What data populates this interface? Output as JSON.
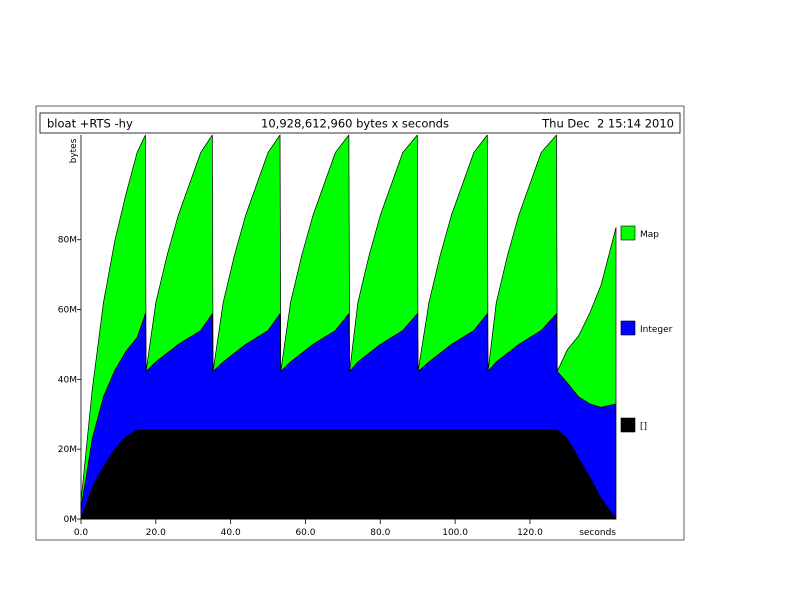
{
  "header": {
    "program": "bloat +RTS -hy",
    "total": "10,928,612,960 bytes x seconds",
    "date": "Thu Dec  2 15:14 2010"
  },
  "chart_data": {
    "type": "area",
    "stacked": true,
    "title": "bloat +RTS -hy",
    "xlabel": "seconds",
    "ylabel": "bytes",
    "xlim": [
      0,
      143
    ],
    "ylim": [
      0,
      110
    ],
    "y_unit": "M",
    "xticks": [
      0,
      20,
      40,
      60,
      80,
      100,
      120
    ],
    "xtick_labels": [
      "0.0",
      "20.0",
      "40.0",
      "60.0",
      "80.0",
      "100.0",
      "120.0"
    ],
    "yticks": [
      0,
      20,
      40,
      60,
      80
    ],
    "ytick_labels": [
      "0M",
      "20M",
      "40M",
      "60M",
      "80M"
    ],
    "legend_position": "right",
    "x": [
      0,
      3,
      6,
      9,
      12,
      15,
      17.2,
      17.4,
      20,
      23,
      26,
      29,
      32,
      35.1,
      35.3,
      38,
      41,
      44,
      47,
      50,
      53.2,
      53.4,
      56,
      59,
      62,
      65,
      68,
      71.6,
      71.8,
      74,
      77,
      80,
      83,
      86,
      89.9,
      90.1,
      93,
      96,
      99,
      102,
      105,
      108.6,
      108.8,
      111,
      114,
      117,
      120,
      123,
      127.1,
      127.3,
      130,
      133,
      136,
      139,
      143
    ],
    "series": [
      {
        "name": "[]",
        "color": "#000000",
        "values": [
          0,
          9,
          15,
          20,
          23.5,
          25.5,
          25.5,
          25.5,
          25.5,
          25.5,
          25.5,
          25.5,
          25.5,
          25.5,
          25.5,
          25.5,
          25.5,
          25.5,
          25.5,
          25.5,
          25.5,
          25.5,
          25.5,
          25.5,
          25.5,
          25.5,
          25.5,
          25.5,
          25.5,
          25.5,
          25.5,
          25.5,
          25.5,
          25.5,
          25.5,
          25.5,
          25.5,
          25.5,
          25.5,
          25.5,
          25.5,
          25.5,
          25.5,
          25.5,
          25.5,
          25.5,
          25.5,
          25.5,
          25.5,
          25.5,
          23,
          17.5,
          12,
          6,
          0
        ]
      },
      {
        "name": "Integer",
        "color": "#0000ff",
        "values": [
          3,
          14,
          20,
          22.5,
          24.5,
          26.5,
          33.3,
          16.8,
          19.5,
          22,
          24.5,
          26.5,
          28.5,
          33.3,
          16.8,
          19.5,
          22,
          24.5,
          26.5,
          28.5,
          33.3,
          16.8,
          19.5,
          22,
          24.5,
          26.5,
          28.5,
          33.3,
          16.8,
          19.5,
          22,
          24.5,
          26.5,
          28.5,
          33.3,
          16.8,
          19.5,
          22,
          24.5,
          26.5,
          28.5,
          33.3,
          16.8,
          19.5,
          22,
          24.5,
          26.5,
          28.5,
          33.3,
          16.8,
          16,
          17.5,
          21,
          26,
          33
        ]
      },
      {
        "name": "Map",
        "color": "#00ff00",
        "values": [
          2,
          14,
          27,
          37,
          45,
          53,
          51.2,
          0,
          17,
          28,
          37,
          44,
          51,
          51.2,
          0,
          17,
          28,
          37,
          44,
          51,
          51.2,
          0,
          17,
          28,
          37,
          44,
          51,
          51.2,
          0,
          17,
          28,
          37,
          44,
          51,
          51.2,
          0,
          17,
          28,
          37,
          44,
          51,
          51.2,
          0,
          17,
          28,
          37,
          44,
          51,
          51.2,
          0,
          9.5,
          17.5,
          26,
          35,
          50.5
        ]
      }
    ]
  }
}
